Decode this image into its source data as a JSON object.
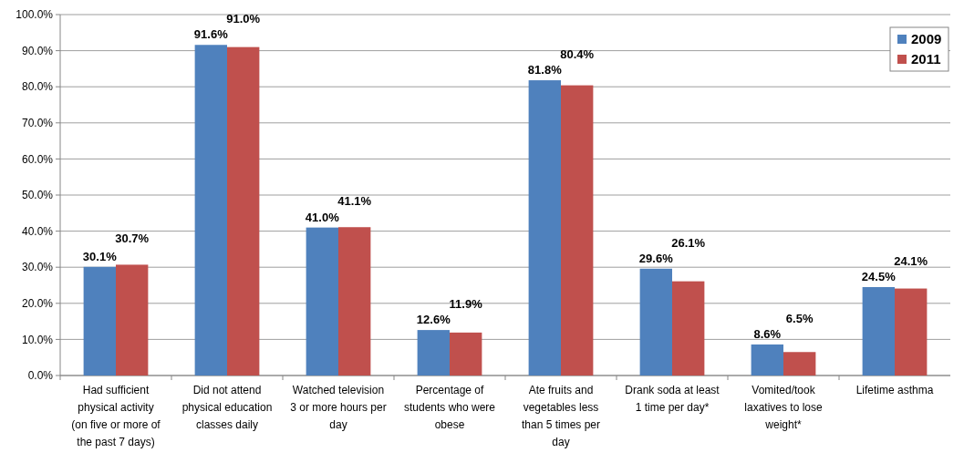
{
  "chart_data": {
    "type": "bar",
    "categories": [
      "Had sufficient physical activity (on five or more of the past 7 days)",
      "Did not attend physical education classes daily",
      "Watched television 3 or more hours per day",
      "Percentage of students who were obese",
      "Ate fruits and vegetables less than 5 times per day",
      "Drank soda at least 1 time per day*",
      "Vomited/took laxatives to lose weight*",
      "Lifetime asthma"
    ],
    "series": [
      {
        "name": "2009",
        "color": "#4f81bd",
        "values": [
          30.1,
          91.6,
          41.0,
          12.6,
          81.8,
          29.6,
          8.6,
          24.5
        ],
        "value_labels": [
          "30.1%",
          "91.6%",
          "41.0%",
          "12.6%",
          "81.8%",
          "29.6%",
          "8.6%",
          "24.5%"
        ]
      },
      {
        "name": "2011",
        "color": "#c0504d",
        "values": [
          30.7,
          91.0,
          41.1,
          11.9,
          80.4,
          26.1,
          6.5,
          24.1
        ],
        "value_labels": [
          "30.7%",
          "91.0%",
          "41.1%",
          "11.9%",
          "80.4%",
          "26.1%",
          "6.5%",
          "24.1%"
        ]
      }
    ],
    "ylim": [
      0,
      100
    ],
    "yticks": [
      {
        "value": 0,
        "label": "0.0%"
      },
      {
        "value": 10,
        "label": "10.0%"
      },
      {
        "value": 20,
        "label": "20.0%"
      },
      {
        "value": 30,
        "label": "30.0%"
      },
      {
        "value": 40,
        "label": "40.0%"
      },
      {
        "value": 50,
        "label": "50.0%"
      },
      {
        "value": 60,
        "label": "60.0%"
      },
      {
        "value": 70,
        "label": "70.0%"
      },
      {
        "value": 80,
        "label": "80.0%"
      },
      {
        "value": 90,
        "label": "90.0%"
      },
      {
        "value": 100,
        "label": "100.0%"
      }
    ],
    "grid": "y",
    "legend": "top right"
  }
}
